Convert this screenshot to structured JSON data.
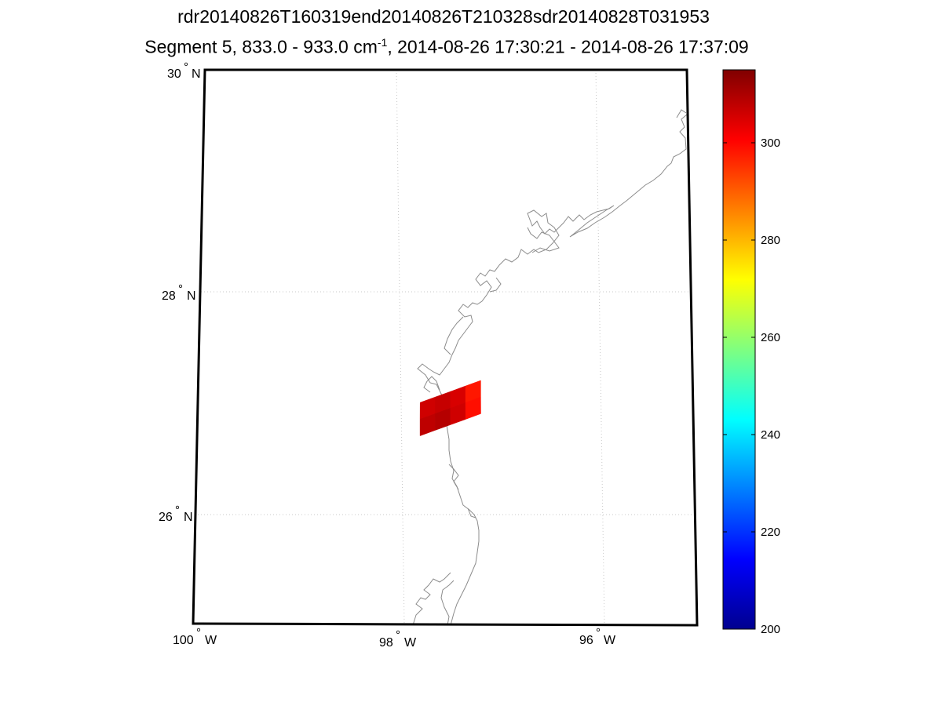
{
  "title_line1": "rdr20140826T160319end20140826T210328sdr20140828T031953",
  "title_line2": {
    "prefix": "Segment 5, 833.0 - 933.0 cm",
    "sup": "-1",
    "suffix": ", 2014-08-26 17:30:21 - 2014-08-26 17:37:09"
  },
  "map": {
    "lat_range": [
      25,
      30
    ],
    "lon_range": [
      -100,
      -95.1
    ],
    "lat_labels": [
      {
        "text": "30",
        "deg": "°",
        "hemi": "N"
      },
      {
        "text": "28",
        "deg": "°",
        "hemi": "N"
      },
      {
        "text": "26",
        "deg": "°",
        "hemi": "N"
      }
    ],
    "lon_labels": [
      {
        "text": "100",
        "deg": "°",
        "hemi": "W"
      },
      {
        "text": "98",
        "deg": "°",
        "hemi": "W"
      },
      {
        "text": "96",
        "deg": "°",
        "hemi": "W"
      }
    ],
    "swath": {
      "lon_range": [
        -97.8,
        -97.2
      ],
      "lat_range": [
        26.7,
        27.0
      ],
      "values_K": [
        [
          306,
          307,
          305,
          298
        ],
        [
          308,
          309,
          306,
          299
        ]
      ]
    },
    "coastline_color": "#8c8c8c",
    "grid_color": "#c8c8c8"
  },
  "colorbar": {
    "min": 200,
    "max": 315,
    "ticks": [
      "200",
      "220",
      "240",
      "260",
      "280",
      "300"
    ],
    "colormap": "jet"
  }
}
